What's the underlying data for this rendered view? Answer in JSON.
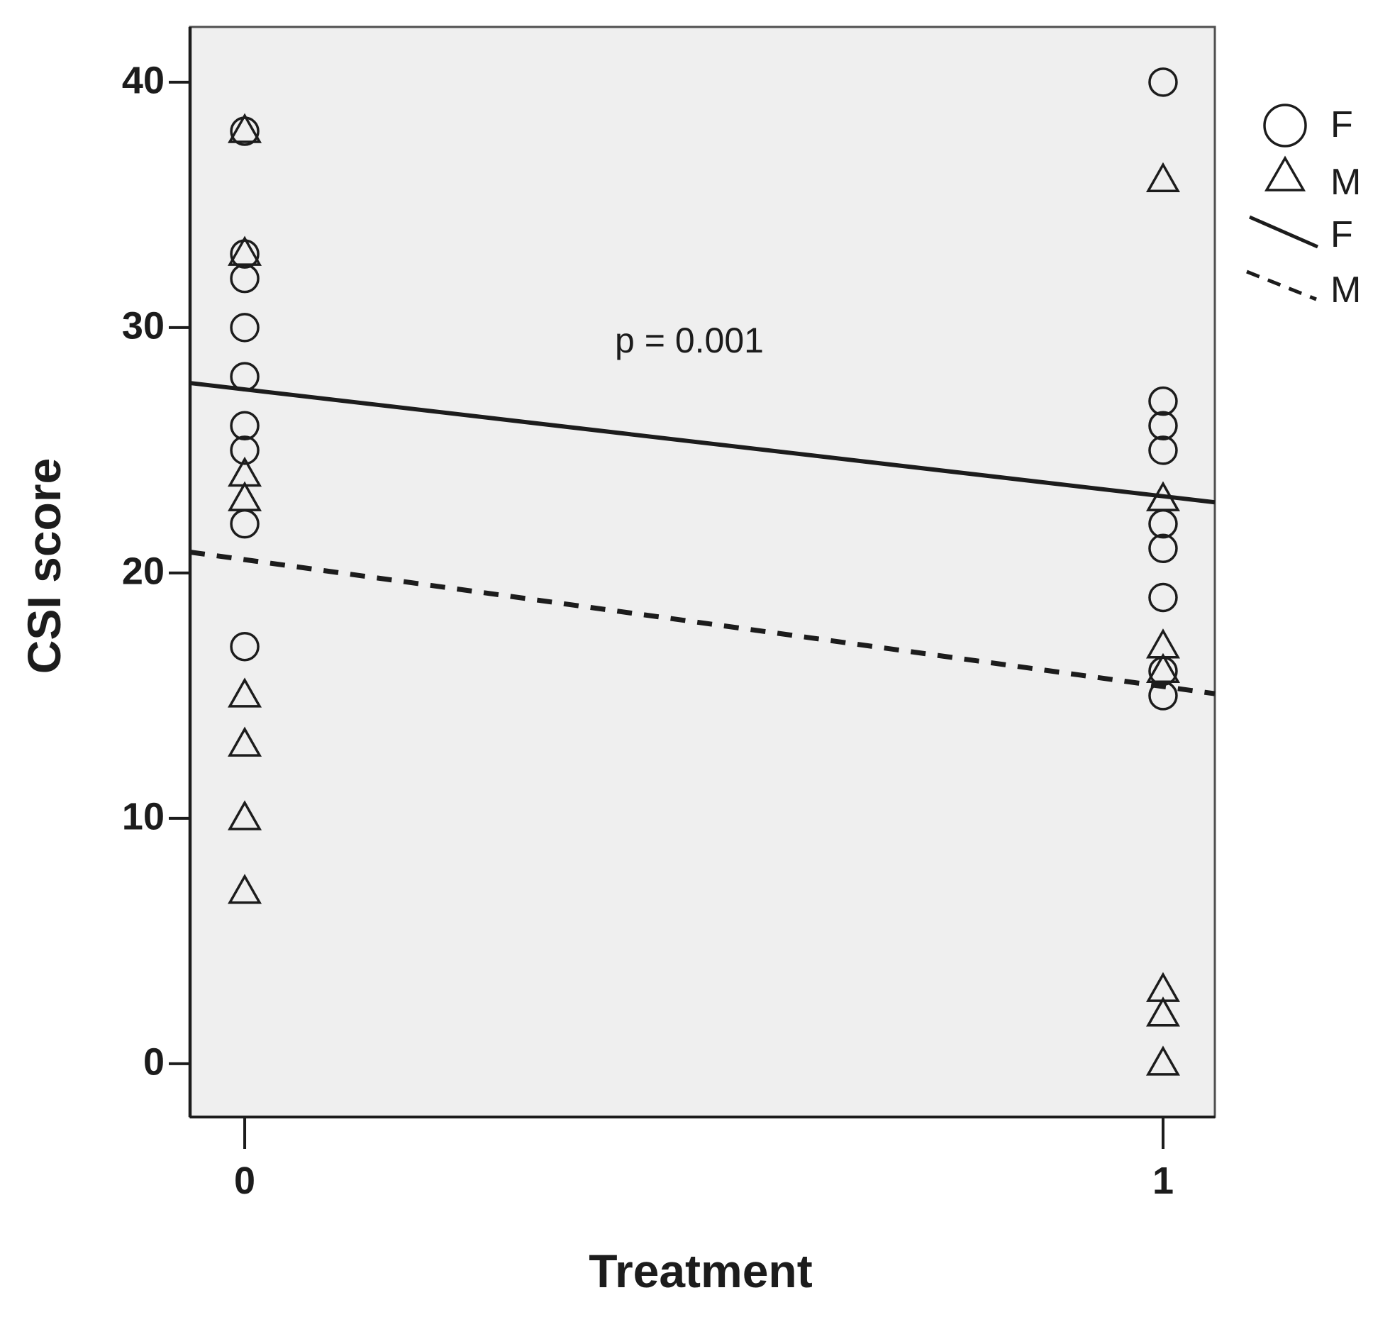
{
  "figure": {
    "background": "#ffffff"
  },
  "chart_data": {
    "type": "scatter",
    "title": "",
    "xlabel": "Treatment",
    "ylabel": "CSI score",
    "annotation": {
      "text": "p = 0.001",
      "x": 0.484,
      "y": 29.5
    },
    "xlim": [
      -0.0595,
      1.0564
    ],
    "ylim": [
      -2.17,
      42.25
    ],
    "grid": false,
    "plot_bg": "#efefef",
    "plot_border_color": "#4f4f4f",
    "ink_color": "#1c1c1c",
    "x_ticks": [
      {
        "value": 0,
        "label": "0"
      },
      {
        "value": 1,
        "label": "1"
      }
    ],
    "y_ticks": [
      {
        "value": 40,
        "label": "40"
      },
      {
        "value": 30,
        "label": "30"
      },
      {
        "value": 20,
        "label": "20"
      },
      {
        "value": 10,
        "label": "10"
      },
      {
        "value": 0,
        "label": "0"
      }
    ],
    "series": [
      {
        "name": "F",
        "marker": "circle",
        "points": [
          [
            0,
            38
          ],
          [
            0,
            33
          ],
          [
            0,
            32
          ],
          [
            0,
            30
          ],
          [
            0,
            28
          ],
          [
            0,
            26
          ],
          [
            0,
            25
          ],
          [
            0,
            22
          ],
          [
            0,
            17
          ],
          [
            1,
            40
          ],
          [
            1,
            27
          ],
          [
            1,
            26
          ],
          [
            1,
            25
          ],
          [
            1,
            22
          ],
          [
            1,
            21
          ],
          [
            1,
            19
          ],
          [
            1,
            16
          ],
          [
            1,
            15
          ]
        ]
      },
      {
        "name": "M",
        "marker": "triangle",
        "points": [
          [
            0,
            38
          ],
          [
            0,
            33
          ],
          [
            0,
            24
          ],
          [
            0,
            23
          ],
          [
            0,
            15
          ],
          [
            0,
            13
          ],
          [
            0,
            10
          ],
          [
            0,
            7
          ],
          [
            1,
            36
          ],
          [
            1,
            23
          ],
          [
            1,
            17
          ],
          [
            1,
            16
          ],
          [
            1,
            3
          ],
          [
            1,
            2
          ],
          [
            1,
            0
          ]
        ]
      }
    ],
    "fit_lines": [
      {
        "name": "F",
        "style": "solid",
        "x1": -0.0595,
        "y1": 27.74,
        "x2": 1.0564,
        "y2": 22.88
      },
      {
        "name": "M",
        "style": "dashed",
        "x1": -0.0595,
        "y1": 20.85,
        "x2": 1.0564,
        "y2": 15.08
      }
    ],
    "legend": {
      "position": "top-right-outside",
      "items": [
        {
          "glyph": "circle-marker",
          "label": "F"
        },
        {
          "glyph": "triangle-marker",
          "label": "M"
        },
        {
          "glyph": "solid-line",
          "label": "F"
        },
        {
          "glyph": "dashed-line",
          "label": "M"
        }
      ]
    }
  }
}
